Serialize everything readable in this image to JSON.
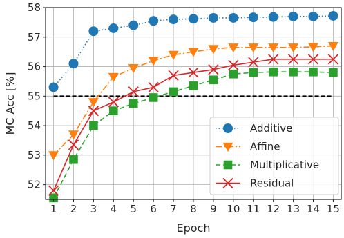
{
  "chart_data": {
    "type": "line",
    "title": "",
    "xlabel": "Epoch",
    "ylabel": "MC Acc [%]",
    "x": [
      1,
      2,
      3,
      4,
      5,
      6,
      7,
      8,
      9,
      10,
      11,
      12,
      13,
      14,
      15
    ],
    "xlim": [
      0.6,
      15.4
    ],
    "ylim": [
      51.5,
      58
    ],
    "yticks": [
      52,
      53,
      54,
      55,
      56,
      57,
      58
    ],
    "grid": true,
    "legend_position": "bottom-right",
    "reference_line": {
      "y": 55,
      "style": "dashed",
      "color": "#000000"
    },
    "series": [
      {
        "name": "Additive",
        "color": "#1f77b4",
        "marker": "circle",
        "line_style": "dotted",
        "values": [
          55.3,
          56.1,
          57.2,
          57.3,
          57.4,
          57.55,
          57.6,
          57.62,
          57.65,
          57.65,
          57.67,
          57.68,
          57.7,
          57.7,
          57.72
        ]
      },
      {
        "name": "Affine",
        "color": "#ff7f0e",
        "marker": "triangle-down",
        "line_style": "dashdot",
        "values": [
          53.0,
          53.7,
          54.8,
          55.65,
          55.95,
          56.2,
          56.4,
          56.5,
          56.6,
          56.65,
          56.65,
          56.65,
          56.65,
          56.67,
          56.7
        ]
      },
      {
        "name": "Multiplicative",
        "color": "#2ca02c",
        "marker": "square",
        "line_style": "dashed",
        "values": [
          51.55,
          52.85,
          54.0,
          54.5,
          54.75,
          54.95,
          55.15,
          55.35,
          55.55,
          55.75,
          55.8,
          55.82,
          55.82,
          55.82,
          55.8
        ]
      },
      {
        "name": "Residual",
        "color": "#d62728",
        "marker": "x",
        "line_style": "solid",
        "values": [
          51.8,
          53.35,
          54.5,
          54.8,
          55.15,
          55.3,
          55.7,
          55.8,
          55.9,
          56.05,
          56.15,
          56.25,
          56.25,
          56.25,
          56.25
        ]
      }
    ]
  }
}
